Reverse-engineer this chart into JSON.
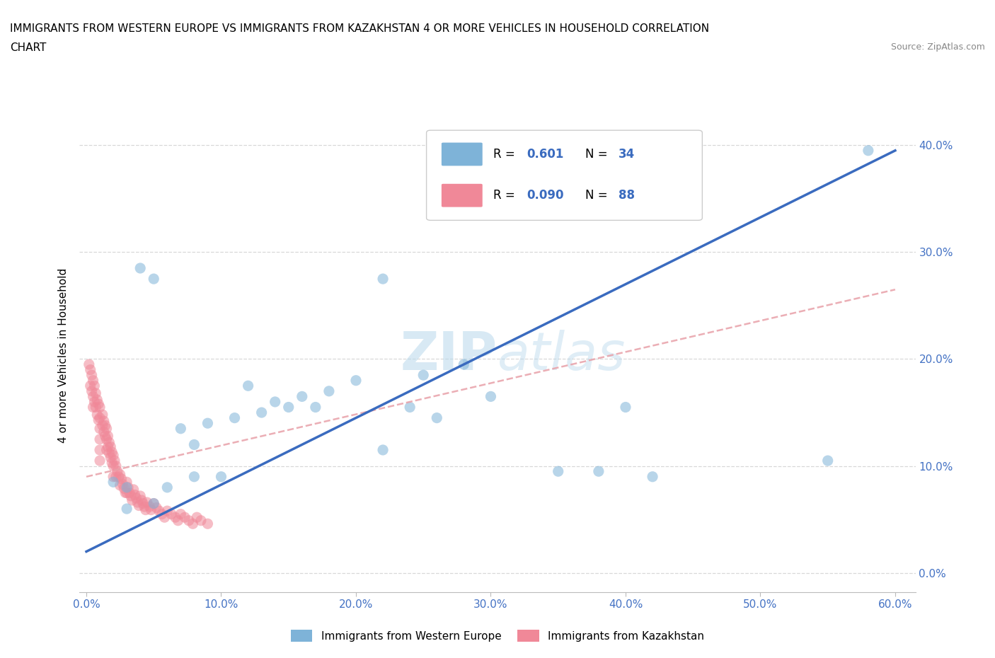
{
  "title_line1": "IMMIGRANTS FROM WESTERN EUROPE VS IMMIGRANTS FROM KAZAKHSTAN 4 OR MORE VEHICLES IN HOUSEHOLD CORRELATION",
  "title_line2": "CHART",
  "source_text": "Source: ZipAtlas.com",
  "ylabel": "4 or more Vehicles in Household",
  "watermark_text": "ZIPatlas",
  "R_blue": 0.601,
  "N_blue": 34,
  "R_pink": 0.09,
  "N_pink": 88,
  "blue_scatter_x": [
    0.22,
    0.05,
    0.04,
    0.08,
    0.1,
    0.12,
    0.09,
    0.07,
    0.11,
    0.13,
    0.15,
    0.14,
    0.16,
    0.18,
    0.2,
    0.25,
    0.28,
    0.3,
    0.35,
    0.38,
    0.4,
    0.55,
    0.02,
    0.03,
    0.06,
    0.08,
    0.17,
    0.22,
    0.24,
    0.26,
    0.42,
    0.03,
    0.05,
    0.58
  ],
  "blue_scatter_y": [
    0.275,
    0.275,
    0.285,
    0.09,
    0.09,
    0.175,
    0.14,
    0.135,
    0.145,
    0.15,
    0.155,
    0.16,
    0.165,
    0.17,
    0.18,
    0.185,
    0.195,
    0.165,
    0.095,
    0.095,
    0.155,
    0.105,
    0.085,
    0.08,
    0.08,
    0.12,
    0.155,
    0.115,
    0.155,
    0.145,
    0.09,
    0.06,
    0.065,
    0.395
  ],
  "pink_scatter_x": [
    0.002,
    0.003,
    0.003,
    0.004,
    0.004,
    0.005,
    0.005,
    0.005,
    0.006,
    0.006,
    0.007,
    0.007,
    0.008,
    0.008,
    0.009,
    0.009,
    0.01,
    0.01,
    0.01,
    0.01,
    0.01,
    0.01,
    0.012,
    0.012,
    0.013,
    0.013,
    0.014,
    0.014,
    0.015,
    0.015,
    0.015,
    0.016,
    0.016,
    0.017,
    0.017,
    0.018,
    0.018,
    0.019,
    0.019,
    0.02,
    0.02,
    0.02,
    0.021,
    0.022,
    0.022,
    0.023,
    0.024,
    0.025,
    0.025,
    0.026,
    0.027,
    0.028,
    0.029,
    0.03,
    0.03,
    0.031,
    0.032,
    0.033,
    0.034,
    0.035,
    0.036,
    0.037,
    0.038,
    0.039,
    0.04,
    0.041,
    0.042,
    0.043,
    0.044,
    0.045,
    0.047,
    0.048,
    0.05,
    0.052,
    0.054,
    0.056,
    0.058,
    0.06,
    0.063,
    0.066,
    0.068,
    0.07,
    0.073,
    0.076,
    0.079,
    0.082,
    0.085,
    0.09
  ],
  "pink_scatter_y": [
    0.195,
    0.19,
    0.175,
    0.185,
    0.17,
    0.18,
    0.165,
    0.155,
    0.175,
    0.16,
    0.168,
    0.155,
    0.162,
    0.148,
    0.158,
    0.143,
    0.155,
    0.145,
    0.135,
    0.125,
    0.115,
    0.105,
    0.148,
    0.138,
    0.142,
    0.132,
    0.138,
    0.128,
    0.135,
    0.125,
    0.115,
    0.128,
    0.118,
    0.122,
    0.112,
    0.118,
    0.108,
    0.113,
    0.103,
    0.11,
    0.1,
    0.09,
    0.105,
    0.1,
    0.09,
    0.095,
    0.09,
    0.092,
    0.082,
    0.088,
    0.083,
    0.079,
    0.075,
    0.085,
    0.075,
    0.08,
    0.075,
    0.072,
    0.068,
    0.078,
    0.073,
    0.07,
    0.066,
    0.063,
    0.072,
    0.068,
    0.065,
    0.062,
    0.059,
    0.066,
    0.062,
    0.059,
    0.065,
    0.061,
    0.058,
    0.055,
    0.052,
    0.058,
    0.055,
    0.052,
    0.049,
    0.055,
    0.052,
    0.049,
    0.046,
    0.052,
    0.049,
    0.046
  ],
  "blue_line_x": [
    0.0,
    0.6
  ],
  "blue_line_y": [
    0.02,
    0.395
  ],
  "pink_line_x": [
    0.0,
    0.6
  ],
  "pink_line_y": [
    0.09,
    0.265
  ],
  "xlim": [
    -0.005,
    0.615
  ],
  "ylim": [
    -0.018,
    0.425
  ],
  "xticks": [
    0.0,
    0.1,
    0.2,
    0.3,
    0.4,
    0.5,
    0.6
  ],
  "yticks": [
    0.0,
    0.1,
    0.2,
    0.3,
    0.4
  ],
  "xticklabels": [
    "0.0%",
    "10.0%",
    "20.0%",
    "30.0%",
    "40.0%",
    "50.0%",
    "60.0%"
  ],
  "yticklabels_right": [
    "0.0%",
    "10.0%",
    "20.0%",
    "30.0%",
    "40.0%"
  ],
  "grid_color": "#d8d8d8",
  "background_color": "#ffffff",
  "blue_dot_color": "#7eb3d8",
  "pink_dot_color": "#f08898",
  "blue_line_color": "#3a6bbf",
  "pink_line_color": "#e8a0a8",
  "tick_color": "#4472c4",
  "title_fontsize": 11,
  "axis_label_fontsize": 11,
  "tick_fontsize": 11,
  "legend_label_blue": "Immigrants from Western Europe",
  "legend_label_pink": "Immigrants from Kazakhstan"
}
